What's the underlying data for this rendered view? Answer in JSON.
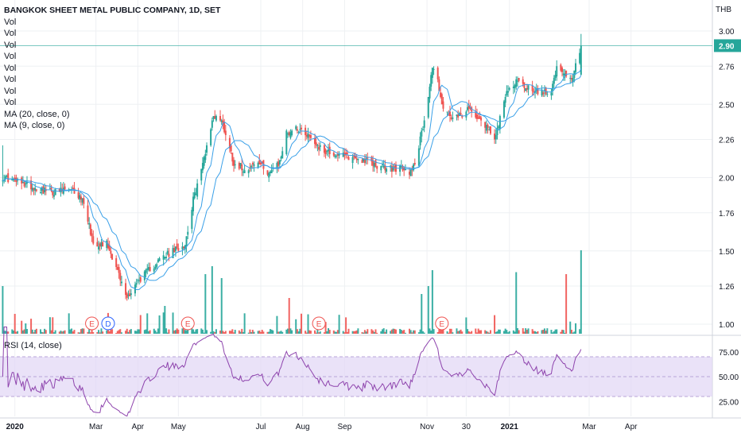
{
  "legend": {
    "title": "BANGKOK SHEET METAL PUBLIC COMPANY, 1D, SET",
    "vol_rows": [
      "Vol",
      "Vol",
      "Vol",
      "Vol",
      "Vol",
      "Vol",
      "Vol",
      "Vol"
    ],
    "ma20": "MA (20, close, 0)",
    "ma9": "MA (9, close, 0)",
    "rsi": "RSI (14, close)"
  },
  "currency": "THB",
  "last_price_badge": "2.90",
  "colors": {
    "up": "#26a69a",
    "down": "#ef5350",
    "ma": "#3aa0e8",
    "rsi": "#8e44ad",
    "rsi_band": "#e1d5f5",
    "grid": "#eef0f3",
    "price_line": "#26a69a"
  },
  "chart_data": {
    "type": "candlestick",
    "price_axis": {
      "ticks": [
        "3.00",
        "2.76",
        "2.50",
        "2.26",
        "2.00",
        "1.76",
        "1.50",
        "1.26",
        "1.00"
      ],
      "range": [
        0.96,
        3.12
      ]
    },
    "rsi_axis": {
      "ticks": [
        "75.00",
        "50.00",
        "25.00"
      ],
      "range": [
        10,
        90
      ],
      "band": [
        30,
        70
      ]
    },
    "time_axis": [
      "2020",
      "Mar",
      "Apr",
      "May",
      "Jul",
      "Aug",
      "Sep",
      "Nov",
      "30",
      "2021",
      "Mar",
      "Apr"
    ],
    "events": [
      {
        "label": "E",
        "kind": "earnings"
      },
      {
        "label": "D",
        "kind": "dividend"
      },
      {
        "label": "E",
        "kind": "earnings"
      },
      {
        "label": "E",
        "kind": "earnings"
      },
      {
        "label": "E",
        "kind": "earnings"
      }
    ],
    "close_anchors": [
      {
        "d": "2019-12-23",
        "v": 2.0
      },
      {
        "d": "2020-01-06",
        "v": 1.96
      },
      {
        "d": "2020-01-20",
        "v": 1.92
      },
      {
        "d": "2020-01-31",
        "v": 1.9
      },
      {
        "d": "2020-02-07",
        "v": 1.92
      },
      {
        "d": "2020-02-14",
        "v": 1.9
      },
      {
        "d": "2020-02-21",
        "v": 1.84
      },
      {
        "d": "2020-02-28",
        "v": 1.55
      },
      {
        "d": "2020-03-09",
        "v": 1.55
      },
      {
        "d": "2020-03-16",
        "v": 1.4
      },
      {
        "d": "2020-03-19",
        "v": 1.3
      },
      {
        "d": "2020-03-24",
        "v": 1.18
      },
      {
        "d": "2020-03-31",
        "v": 1.28
      },
      {
        "d": "2020-04-08",
        "v": 1.36
      },
      {
        "d": "2020-04-17",
        "v": 1.44
      },
      {
        "d": "2020-04-28",
        "v": 1.5
      },
      {
        "d": "2020-05-06",
        "v": 1.55
      },
      {
        "d": "2020-05-12",
        "v": 1.85
      },
      {
        "d": "2020-05-18",
        "v": 2.05
      },
      {
        "d": "2020-05-22",
        "v": 2.22
      },
      {
        "d": "2020-05-27",
        "v": 2.42
      },
      {
        "d": "2020-06-01",
        "v": 2.4
      },
      {
        "d": "2020-06-05",
        "v": 2.3
      },
      {
        "d": "2020-06-11",
        "v": 2.1
      },
      {
        "d": "2020-06-19",
        "v": 2.06
      },
      {
        "d": "2020-06-29",
        "v": 2.1
      },
      {
        "d": "2020-07-07",
        "v": 2.04
      },
      {
        "d": "2020-07-14",
        "v": 2.08
      },
      {
        "d": "2020-07-20",
        "v": 2.3
      },
      {
        "d": "2020-07-27",
        "v": 2.34
      },
      {
        "d": "2020-08-04",
        "v": 2.3
      },
      {
        "d": "2020-08-14",
        "v": 2.2
      },
      {
        "d": "2020-08-24",
        "v": 2.16
      },
      {
        "d": "2020-09-04",
        "v": 2.14
      },
      {
        "d": "2020-09-15",
        "v": 2.12
      },
      {
        "d": "2020-09-25",
        "v": 2.08
      },
      {
        "d": "2020-10-02",
        "v": 2.06
      },
      {
        "d": "2020-10-12",
        "v": 2.06
      },
      {
        "d": "2020-10-19",
        "v": 2.04
      },
      {
        "d": "2020-10-23",
        "v": 2.1
      },
      {
        "d": "2020-10-28",
        "v": 2.3
      },
      {
        "d": "2020-11-02",
        "v": 2.56
      },
      {
        "d": "2020-11-05",
        "v": 2.76
      },
      {
        "d": "2020-11-09",
        "v": 2.66
      },
      {
        "d": "2020-11-13",
        "v": 2.46
      },
      {
        "d": "2020-11-20",
        "v": 2.4
      },
      {
        "d": "2020-11-27",
        "v": 2.42
      },
      {
        "d": "2020-12-02",
        "v": 2.46
      },
      {
        "d": "2020-12-09",
        "v": 2.42
      },
      {
        "d": "2020-12-16",
        "v": 2.34
      },
      {
        "d": "2020-12-21",
        "v": 2.28
      },
      {
        "d": "2020-12-24",
        "v": 2.36
      },
      {
        "d": "2020-12-30",
        "v": 2.58
      },
      {
        "d": "2021-01-06",
        "v": 2.66
      },
      {
        "d": "2021-01-12",
        "v": 2.62
      },
      {
        "d": "2021-01-19",
        "v": 2.6
      },
      {
        "d": "2021-01-26",
        "v": 2.58
      },
      {
        "d": "2021-02-01",
        "v": 2.6
      },
      {
        "d": "2021-02-05",
        "v": 2.74
      },
      {
        "d": "2021-02-10",
        "v": 2.7
      },
      {
        "d": "2021-02-16",
        "v": 2.66
      },
      {
        "d": "2021-02-18",
        "v": 2.72
      },
      {
        "d": "2021-02-23",
        "v": 2.9
      }
    ]
  }
}
